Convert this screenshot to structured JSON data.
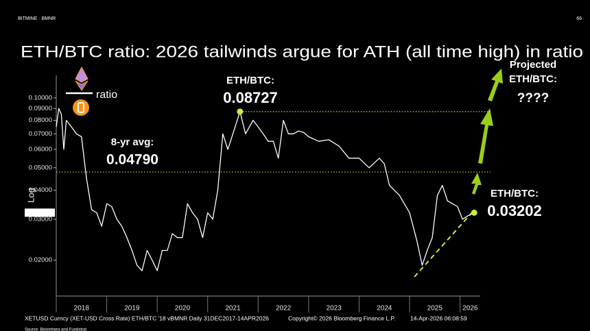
{
  "header": {
    "brand": "BITMINE · BMNR",
    "page": "66"
  },
  "chart_data": {
    "type": "line",
    "title": "ETH/BTC ratio: 2026 tailwinds argue for ATH (all time high) in ratio",
    "y_label": "Log",
    "legend_label": "ratio",
    "log_scale": true,
    "grid": false,
    "color": "#ffffff",
    "annotation_color": "#c8ec3c",
    "x": [
      2018.0,
      2018.05,
      2018.1,
      2018.15,
      2018.2,
      2018.3,
      2018.4,
      2018.5,
      2018.6,
      2018.7,
      2018.8,
      2018.9,
      2019.0,
      2019.1,
      2019.2,
      2019.3,
      2019.4,
      2019.5,
      2019.6,
      2019.7,
      2019.8,
      2019.9,
      2020.0,
      2020.1,
      2020.2,
      2020.3,
      2020.4,
      2020.5,
      2020.6,
      2020.7,
      2020.8,
      2020.9,
      2021.0,
      2021.1,
      2021.2,
      2021.3,
      2021.4,
      2021.5,
      2021.64,
      2021.75,
      2021.9,
      2022.0,
      2022.1,
      2022.2,
      2022.3,
      2022.4,
      2022.5,
      2022.6,
      2022.7,
      2022.8,
      2022.9,
      2023.0,
      2023.2,
      2023.4,
      2023.6,
      2023.8,
      2024.0,
      2024.2,
      2024.4,
      2024.5,
      2024.6,
      2024.8,
      2025.0,
      2025.15,
      2025.25,
      2025.35,
      2025.45,
      2025.55,
      2025.65,
      2025.75,
      2025.85,
      2025.95,
      2026.05,
      2026.15,
      2026.28
    ],
    "values": [
      0.075,
      0.09,
      0.085,
      0.06,
      0.08,
      0.075,
      0.07,
      0.068,
      0.045,
      0.033,
      0.032,
      0.028,
      0.035,
      0.034,
      0.03,
      0.028,
      0.025,
      0.022,
      0.019,
      0.018,
      0.022,
      0.02,
      0.018,
      0.022,
      0.022,
      0.026,
      0.025,
      0.025,
      0.035,
      0.032,
      0.03,
      0.025,
      0.032,
      0.03,
      0.04,
      0.07,
      0.06,
      0.07,
      0.08727,
      0.07,
      0.08,
      0.075,
      0.07,
      0.065,
      0.065,
      0.055,
      0.08,
      0.07,
      0.07,
      0.072,
      0.071,
      0.068,
      0.065,
      0.066,
      0.062,
      0.055,
      0.055,
      0.05,
      0.055,
      0.052,
      0.042,
      0.038,
      0.032,
      0.024,
      0.019,
      0.022,
      0.025,
      0.038,
      0.042,
      0.036,
      0.035,
      0.034,
      0.03,
      0.031,
      0.03202
    ],
    "xlim": [
      2018,
      2026.4
    ],
    "xticks": [
      2018,
      2019,
      2020,
      2021,
      2022,
      2023,
      2024,
      2025,
      2026
    ],
    "ylim": [
      0.014,
      0.125
    ],
    "yticks": [
      {
        "value": 0.02,
        "label": "0.02000"
      },
      {
        "value": 0.03,
        "label": "0.03000"
      },
      {
        "value": 0.04,
        "label": "0.04000"
      },
      {
        "value": 0.05,
        "label": "0.05000"
      },
      {
        "value": 0.06,
        "label": "0.06000"
      },
      {
        "value": 0.07,
        "label": "0.07000"
      },
      {
        "value": 0.08,
        "label": "0.08000"
      },
      {
        "value": 0.09,
        "label": "0.09000"
      },
      {
        "value": 0.1,
        "label": "0.10000"
      }
    ],
    "average": {
      "label": "8-yr avg:",
      "value": 0.0479,
      "value_label": "0.04790"
    },
    "peak": {
      "label": "ETH/BTC:",
      "value": 0.08727,
      "x": 2021.64
    },
    "current": {
      "label": "ETH/BTC:",
      "value": 0.03202,
      "x": 2026.28
    },
    "projection": {
      "label": [
        "Projected",
        "ETH/BTC:"
      ],
      "value": "????"
    },
    "footer": [
      "XETUSD Curncy (XET-USD Cross Rate) ETH/BTC '18 vBMNR Daily 31DEC2017-14APR2026",
      "Copyright© 2026 Bloomberg Finance L.P.",
      "14-Apr-2026 06:08:59"
    ],
    "source": "Source: Bloomberg and Fundstrat"
  }
}
